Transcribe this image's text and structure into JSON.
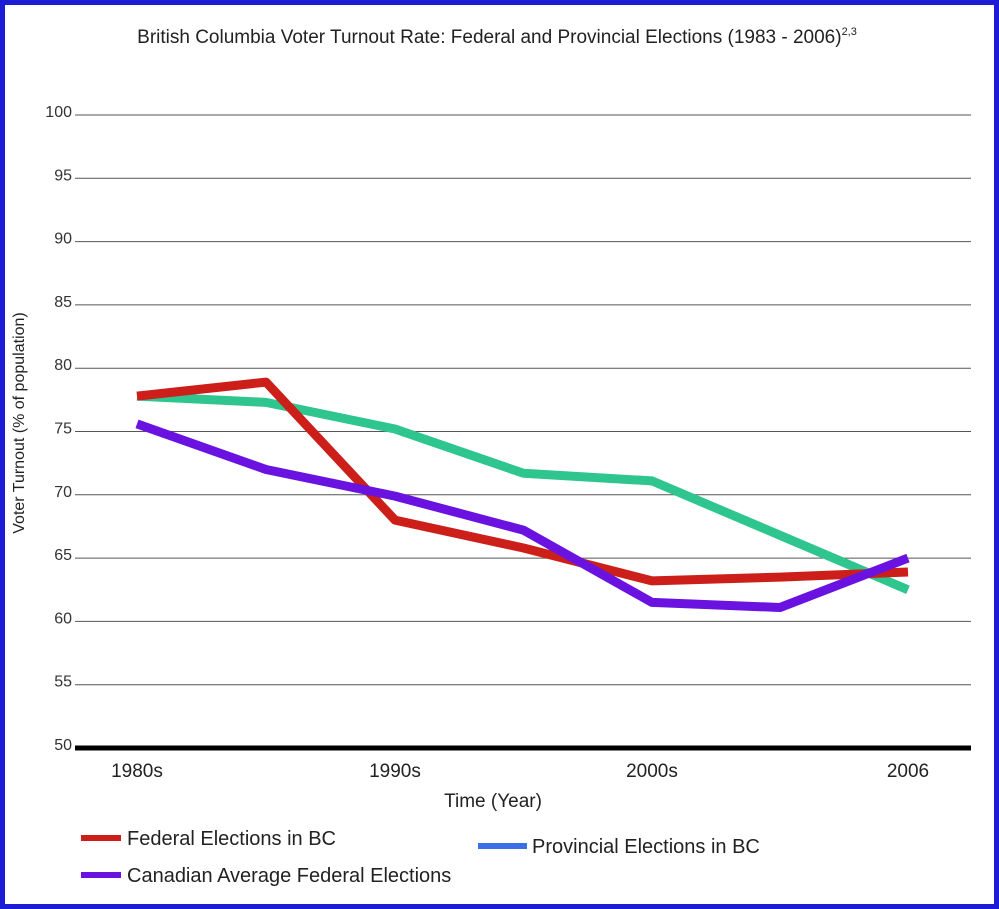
{
  "chart_data": {
    "type": "line",
    "title": "British Columbia Voter Turnout Rate: Federal and Provincial Elections (1983 - 2006)",
    "title_superscript": "2,3",
    "xlabel": "Time (Year)",
    "ylabel": "Voter Turnout (% of population)",
    "categories": [
      "1980s",
      "1990s",
      "2000s",
      "2006"
    ],
    "ylim": [
      50,
      100
    ],
    "yticks": [
      50,
      55,
      60,
      65,
      70,
      75,
      80,
      85,
      90,
      95,
      100
    ],
    "grid": true,
    "legend_position": "bottom",
    "series": [
      {
        "name": "Federal Elections in BC",
        "color": "#cc1f1a",
        "x": [
          0,
          0.5,
          1,
          1.5,
          2,
          2.5,
          3
        ],
        "y": [
          77.8,
          78.9,
          68.0,
          65.8,
          63.2,
          63.5,
          63.9
        ]
      },
      {
        "name": "Provincial Elections in BC",
        "color": "#2fc58f",
        "legend_color": "#3b6fe8",
        "x": [
          0,
          0.5,
          1,
          1.5,
          2,
          2.5,
          3
        ],
        "y": [
          77.8,
          77.3,
          75.2,
          71.7,
          71.1,
          66.8,
          62.5
        ]
      },
      {
        "name": "Canadian Average Federal Elections",
        "color": "#6a12e0",
        "x": [
          0,
          0.5,
          1,
          1.5,
          2,
          2.5,
          3
        ],
        "y": [
          75.6,
          72.0,
          69.9,
          67.2,
          61.5,
          61.1,
          65.0
        ]
      }
    ]
  }
}
